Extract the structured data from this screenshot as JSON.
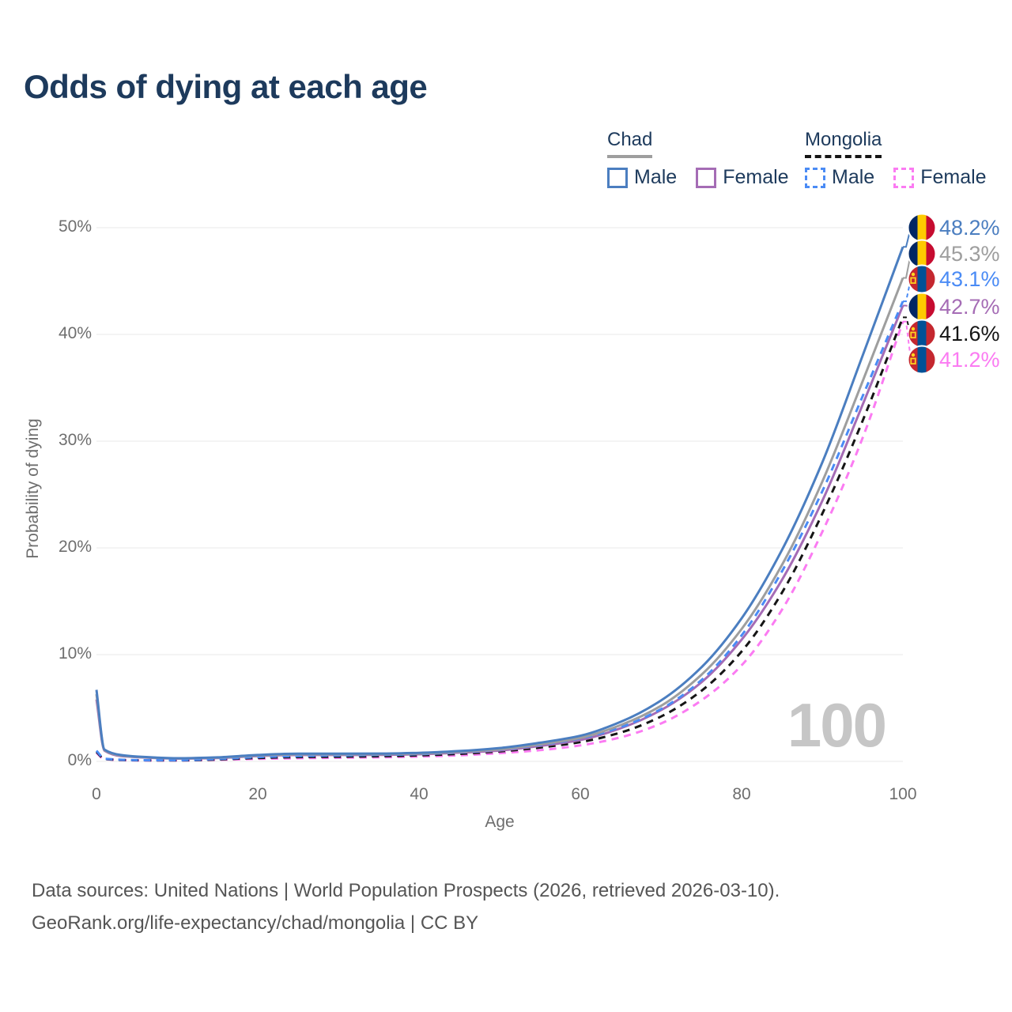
{
  "title": "Odds of dying at each age",
  "watermark_age": "100",
  "legend": {
    "groups": [
      {
        "label": "Chad",
        "line_color": "#9e9e9e",
        "line_style": "solid",
        "items": [
          {
            "label": "Male",
            "color": "#4b7ec0",
            "style": "solid"
          },
          {
            "label": "Female",
            "color": "#a56cb5",
            "style": "solid"
          }
        ]
      },
      {
        "label": "Mongolia",
        "line_color": "#151515",
        "line_style": "dashed",
        "items": [
          {
            "label": "Male",
            "color": "#4a8bf5",
            "style": "dashed"
          },
          {
            "label": "Female",
            "color": "#fb7bf2",
            "style": "dashed"
          }
        ]
      }
    ]
  },
  "axes": {
    "x": {
      "label": "Age",
      "ticks": [
        "0",
        "20",
        "40",
        "60",
        "80",
        "100"
      ],
      "range": [
        0,
        100
      ]
    },
    "y": {
      "label": "Probability of dying",
      "ticks": [
        "0%",
        "10%",
        "20%",
        "30%",
        "40%",
        "50%"
      ],
      "range": [
        0,
        50
      ]
    }
  },
  "footer": {
    "line1": "Data sources: United Nations | World Population Prospects (2026, retrieved 2026-03-10).",
    "line2": "GeoRank.org/life-expectancy/chad/mongolia | CC BY"
  },
  "chart_data": {
    "type": "line",
    "title": "Odds of dying at each age",
    "xlabel": "Age",
    "ylabel": "Probability of dying",
    "xlim": [
      0,
      100
    ],
    "ylim": [
      0,
      50
    ],
    "grid": "horizontal",
    "legend_position": "top-right",
    "x_unit": "years",
    "y_unit": "percent",
    "series": [
      {
        "name": "Chad Male",
        "country": "Chad",
        "sex": "Male",
        "color": "#4b7ec0",
        "dash": false,
        "flag": "chad",
        "end_label": "48.2%",
        "points": [
          [
            0,
            6.7
          ],
          [
            1,
            1.1
          ],
          [
            3,
            0.6
          ],
          [
            5,
            0.45
          ],
          [
            10,
            0.3
          ],
          [
            15,
            0.38
          ],
          [
            20,
            0.6
          ],
          [
            25,
            0.72
          ],
          [
            30,
            0.72
          ],
          [
            35,
            0.73
          ],
          [
            40,
            0.8
          ],
          [
            45,
            0.97
          ],
          [
            50,
            1.25
          ],
          [
            55,
            1.75
          ],
          [
            60,
            2.4
          ],
          [
            65,
            3.7
          ],
          [
            70,
            5.7
          ],
          [
            75,
            8.8
          ],
          [
            80,
            13.4
          ],
          [
            85,
            19.8
          ],
          [
            90,
            28.0
          ],
          [
            95,
            38.0
          ],
          [
            100,
            48.2
          ]
        ]
      },
      {
        "name": "Chad Both sexes",
        "country": "Chad",
        "sex": "Both",
        "color": "#9e9e9e",
        "dash": false,
        "flag": "chad",
        "end_label": "45.3%",
        "points": [
          [
            0,
            6.3
          ],
          [
            1,
            1.05
          ],
          [
            3,
            0.55
          ],
          [
            5,
            0.42
          ],
          [
            10,
            0.28
          ],
          [
            15,
            0.35
          ],
          [
            20,
            0.55
          ],
          [
            25,
            0.66
          ],
          [
            30,
            0.66
          ],
          [
            35,
            0.67
          ],
          [
            40,
            0.73
          ],
          [
            45,
            0.9
          ],
          [
            50,
            1.13
          ],
          [
            55,
            1.6
          ],
          [
            60,
            2.2
          ],
          [
            65,
            3.4
          ],
          [
            70,
            5.2
          ],
          [
            75,
            8.1
          ],
          [
            80,
            12.4
          ],
          [
            85,
            18.4
          ],
          [
            90,
            26.2
          ],
          [
            95,
            35.6
          ],
          [
            100,
            45.3
          ]
        ]
      },
      {
        "name": "Mongolia Male",
        "country": "Mongolia",
        "sex": "Male",
        "color": "#4a8bf5",
        "dash": true,
        "flag": "mongolia",
        "end_label": "43.1%",
        "points": [
          [
            0,
            1.0
          ],
          [
            1,
            0.25
          ],
          [
            5,
            0.12
          ],
          [
            10,
            0.11
          ],
          [
            15,
            0.22
          ],
          [
            20,
            0.4
          ],
          [
            25,
            0.5
          ],
          [
            30,
            0.55
          ],
          [
            35,
            0.6
          ],
          [
            40,
            0.68
          ],
          [
            45,
            0.85
          ],
          [
            50,
            1.1
          ],
          [
            55,
            1.55
          ],
          [
            60,
            2.15
          ],
          [
            65,
            3.2
          ],
          [
            70,
            4.9
          ],
          [
            75,
            7.6
          ],
          [
            80,
            11.8
          ],
          [
            85,
            17.8
          ],
          [
            90,
            25.3
          ],
          [
            95,
            34.2
          ],
          [
            100,
            43.1
          ]
        ]
      },
      {
        "name": "Chad Female",
        "country": "Chad",
        "sex": "Female",
        "color": "#a56cb5",
        "dash": false,
        "flag": "chad",
        "end_label": "42.7%",
        "points": [
          [
            0,
            5.8
          ],
          [
            1,
            1.0
          ],
          [
            3,
            0.5
          ],
          [
            5,
            0.4
          ],
          [
            10,
            0.26
          ],
          [
            15,
            0.32
          ],
          [
            20,
            0.5
          ],
          [
            25,
            0.6
          ],
          [
            30,
            0.6
          ],
          [
            35,
            0.61
          ],
          [
            40,
            0.67
          ],
          [
            45,
            0.82
          ],
          [
            50,
            1.02
          ],
          [
            55,
            1.45
          ],
          [
            60,
            2.0
          ],
          [
            65,
            3.1
          ],
          [
            70,
            4.8
          ],
          [
            75,
            7.4
          ],
          [
            80,
            11.4
          ],
          [
            85,
            17.0
          ],
          [
            90,
            24.4
          ],
          [
            95,
            33.4
          ],
          [
            100,
            42.7
          ]
        ]
      },
      {
        "name": "Mongolia Both sexes",
        "country": "Mongolia",
        "sex": "Both",
        "color": "#151515",
        "dash": true,
        "flag": "mongolia",
        "end_label": "41.6%",
        "points": [
          [
            0,
            0.9
          ],
          [
            1,
            0.22
          ],
          [
            5,
            0.1
          ],
          [
            10,
            0.09
          ],
          [
            15,
            0.18
          ],
          [
            20,
            0.32
          ],
          [
            25,
            0.4
          ],
          [
            30,
            0.44
          ],
          [
            35,
            0.48
          ],
          [
            40,
            0.56
          ],
          [
            45,
            0.7
          ],
          [
            50,
            0.93
          ],
          [
            55,
            1.3
          ],
          [
            60,
            1.8
          ],
          [
            65,
            2.7
          ],
          [
            70,
            4.2
          ],
          [
            75,
            6.6
          ],
          [
            80,
            10.3
          ],
          [
            85,
            15.8
          ],
          [
            90,
            23.2
          ],
          [
            95,
            31.9
          ],
          [
            100,
            41.6
          ]
        ]
      },
      {
        "name": "Mongolia Female",
        "country": "Mongolia",
        "sex": "Female",
        "color": "#fb7bf2",
        "dash": true,
        "flag": "mongolia",
        "end_label": "41.2%",
        "points": [
          [
            0,
            0.8
          ],
          [
            1,
            0.2
          ],
          [
            5,
            0.09
          ],
          [
            10,
            0.08
          ],
          [
            15,
            0.14
          ],
          [
            20,
            0.24
          ],
          [
            25,
            0.3
          ],
          [
            30,
            0.34
          ],
          [
            35,
            0.38
          ],
          [
            40,
            0.45
          ],
          [
            45,
            0.57
          ],
          [
            50,
            0.77
          ],
          [
            55,
            1.05
          ],
          [
            60,
            1.5
          ],
          [
            65,
            2.25
          ],
          [
            70,
            3.55
          ],
          [
            75,
            5.7
          ],
          [
            80,
            9.0
          ],
          [
            85,
            14.2
          ],
          [
            90,
            21.5
          ],
          [
            95,
            30.3
          ],
          [
            100,
            41.2
          ]
        ]
      }
    ],
    "flag_colors": {
      "chad": {
        "left": "#002664",
        "middle": "#FECB00",
        "right": "#C60C30"
      },
      "mongolia": {
        "left": "#C4272F",
        "middle": "#015197",
        "right": "#C4272F",
        "emblem": "#FFD520"
      }
    }
  }
}
